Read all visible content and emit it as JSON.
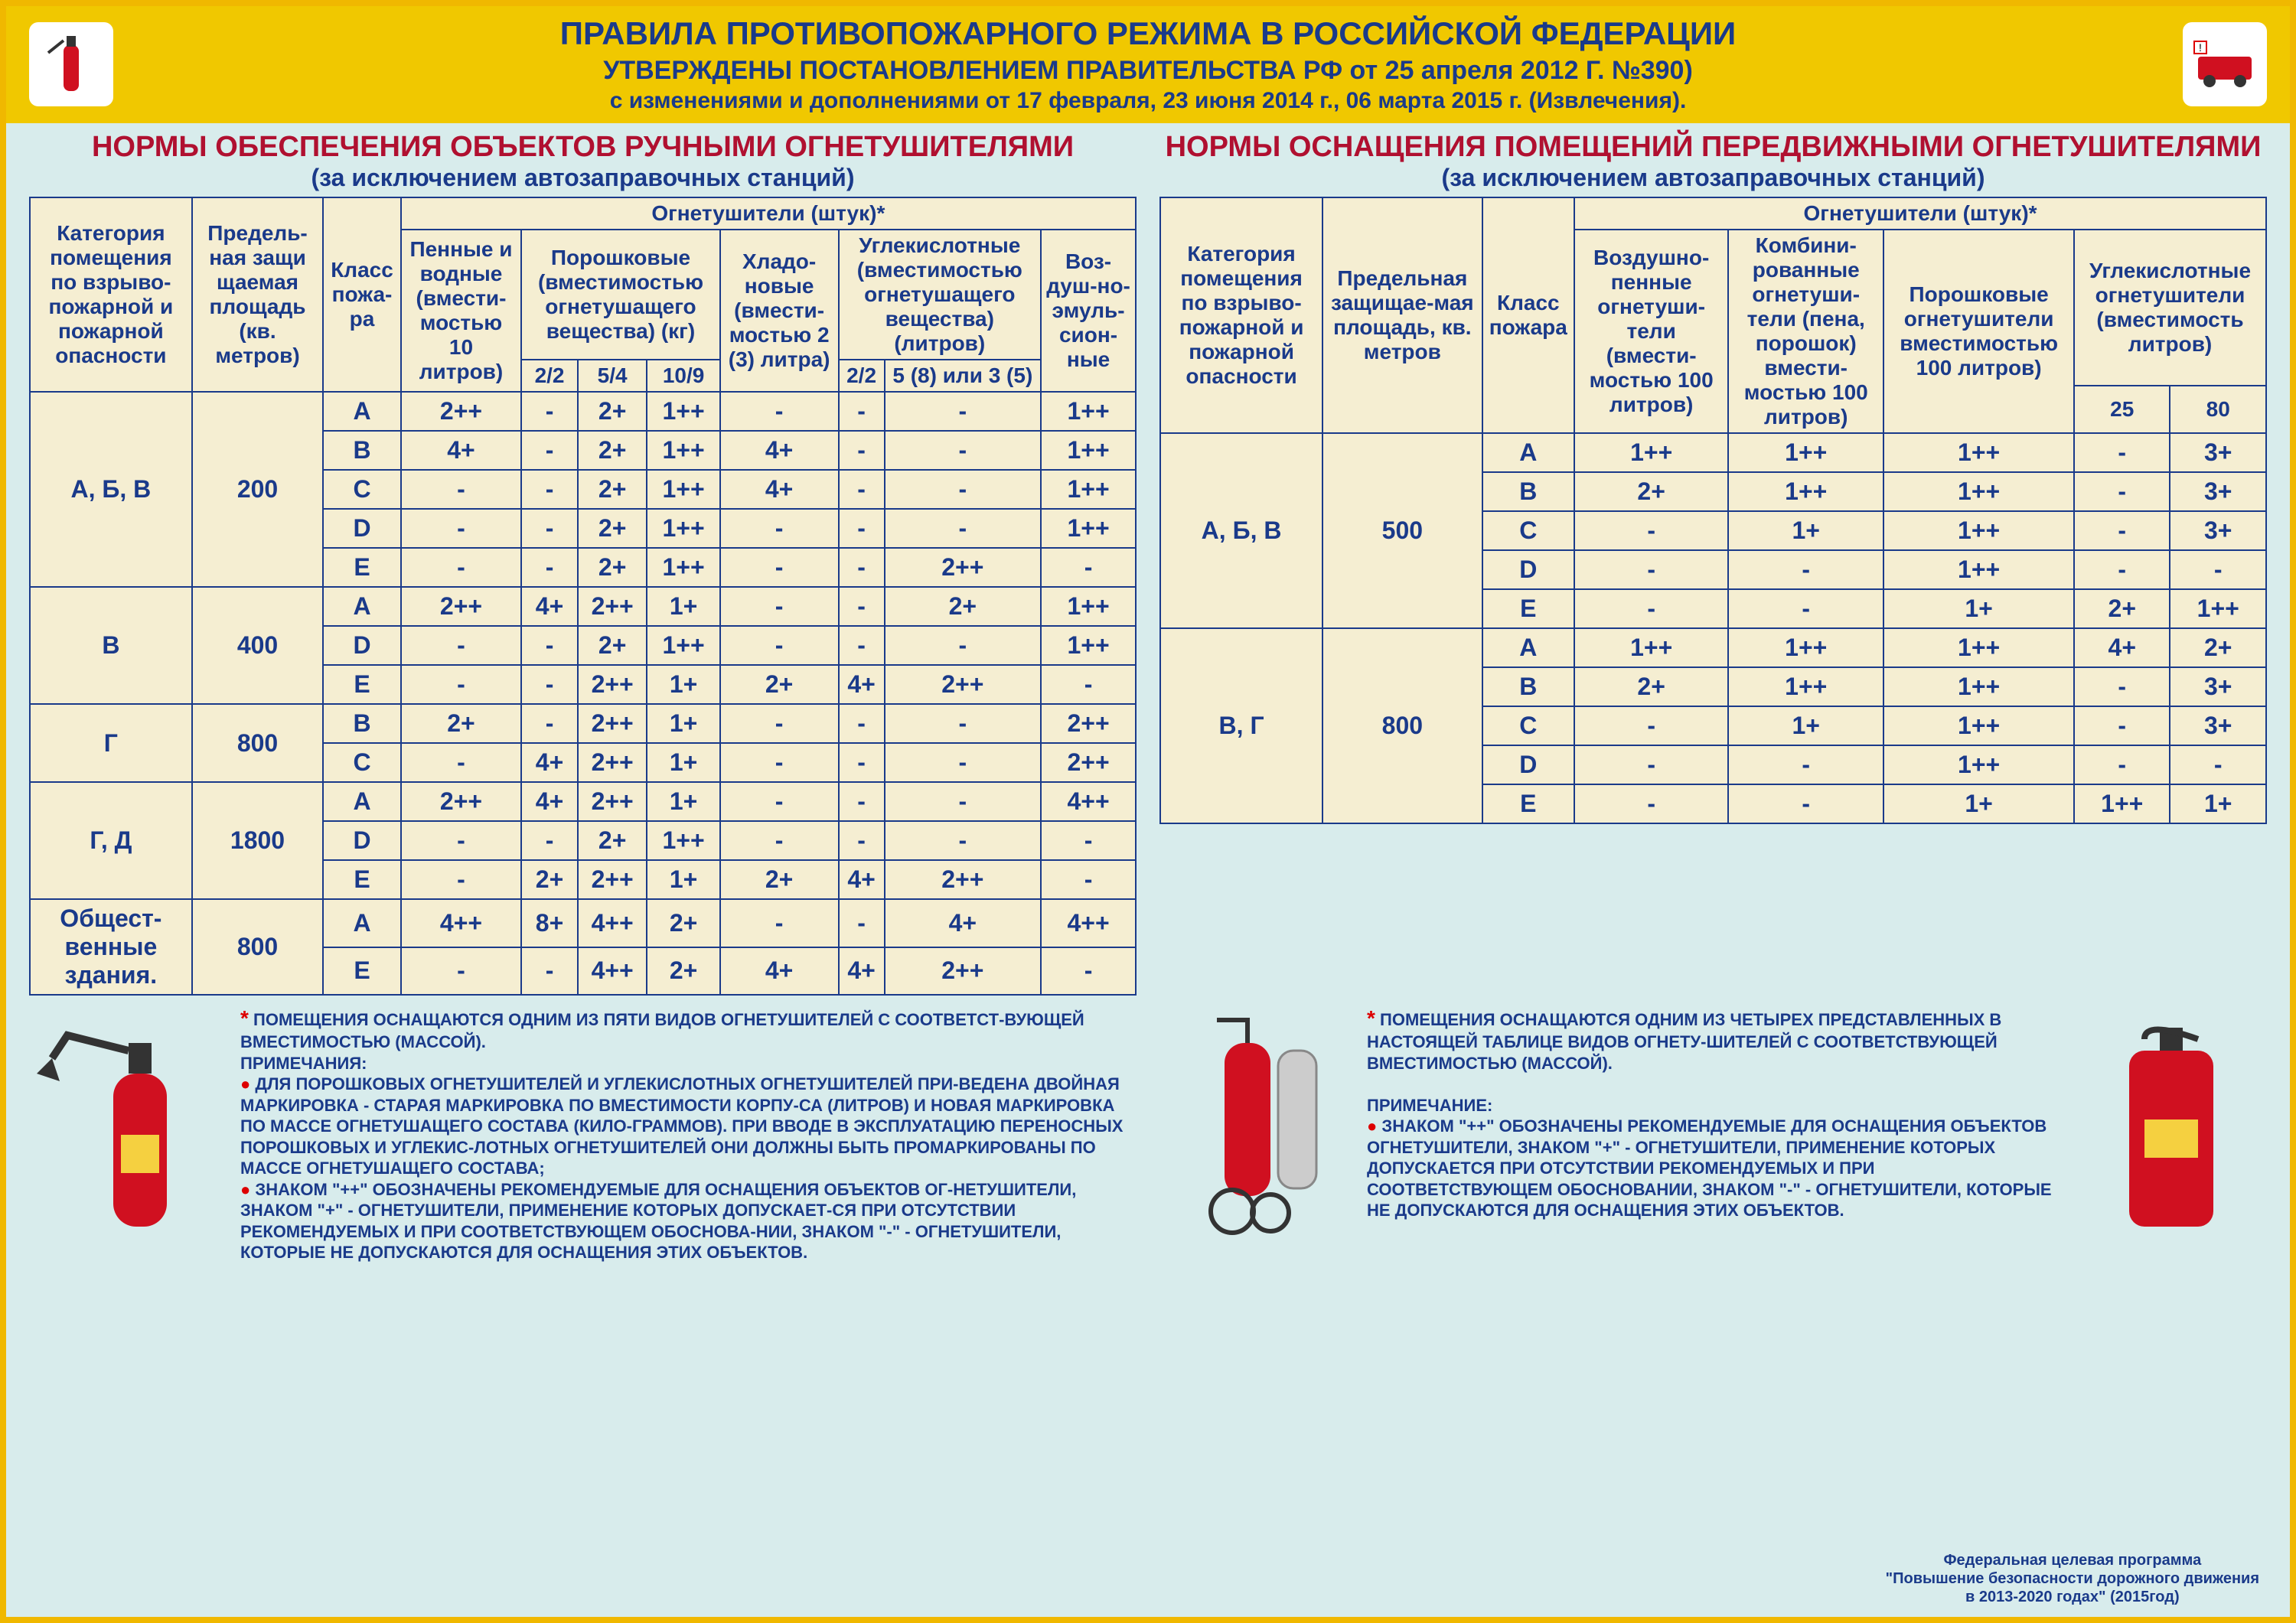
{
  "header": {
    "title": "ПРАВИЛА ПРОТИВОПОЖАРНОГО РЕЖИМА В РОССИЙСКОЙ ФЕДЕРАЦИИ",
    "sub1": "УТВЕРЖДЕНЫ ПОСТАНОВЛЕНИЕМ ПРАВИТЕЛЬСТВА РФ от 25 апреля 2012 Г. №390)",
    "sub2": "с изменениями и дополнениями от 17 февраля, 23 июня 2014 г., 06 марта 2015 г. (Извлечения)."
  },
  "left": {
    "title": "НОРМЫ ОБЕСПЕЧЕНИЯ ОБЪЕКТОВ РУЧНЫМИ ОГНЕТУШИТЕЛЯМИ",
    "sub": "(за исключением автозаправочных станций)",
    "head": {
      "c1": "Категория помещения по взрыво-пожарной и пожарной опасности",
      "c2": "Предель-ная защи щаемая площадь (кв. метров)",
      "c3": "Класс пожа-ра",
      "group": "Огнетушители (штук)*",
      "c4": "Пенные и водные (вмести-мостью 10 литров)",
      "c5g": "Порошковые (вместимостью огнетушащего вещества) (кг)",
      "c5a": "2/2",
      "c5b": "5/4",
      "c5c": "10/9",
      "c6": "Хладо-новые (вмести-мостью 2 (3) литра)",
      "c7g": "Углекислотные (вместимостью огнетушащего вещества) (литров)",
      "c7a": "2/2",
      "c7b": "5 (8) или 3 (5)",
      "c8": "Воз-душ-но-эмуль-сион-ные"
    },
    "groups": [
      {
        "cat": "А, Б, В",
        "area": "200",
        "rows": [
          [
            "А",
            "2++",
            "-",
            "2+",
            "1++",
            "-",
            "-",
            "-",
            "1++"
          ],
          [
            "В",
            "4+",
            "-",
            "2+",
            "1++",
            "4+",
            "-",
            "-",
            "1++"
          ],
          [
            "С",
            "-",
            "-",
            "2+",
            "1++",
            "4+",
            "-",
            "-",
            "1++"
          ],
          [
            "D",
            "-",
            "-",
            "2+",
            "1++",
            "-",
            "-",
            "-",
            "1++"
          ],
          [
            "Е",
            "-",
            "-",
            "2+",
            "1++",
            "-",
            "-",
            "2++",
            "-"
          ]
        ]
      },
      {
        "cat": "В",
        "area": "400",
        "rows": [
          [
            "А",
            "2++",
            "4+",
            "2++",
            "1+",
            "-",
            "-",
            "2+",
            "1++"
          ],
          [
            "D",
            "-",
            "-",
            "2+",
            "1++",
            "-",
            "-",
            "-",
            "1++"
          ],
          [
            "Е",
            "-",
            "-",
            "2++",
            "1+",
            "2+",
            "4+",
            "2++",
            "-"
          ]
        ]
      },
      {
        "cat": "Г",
        "area": "800",
        "rows": [
          [
            "В",
            "2+",
            "-",
            "2++",
            "1+",
            "-",
            "-",
            "-",
            "2++"
          ],
          [
            "С",
            "-",
            "4+",
            "2++",
            "1+",
            "-",
            "-",
            "-",
            "2++"
          ]
        ]
      },
      {
        "cat": "Г, Д",
        "area": "1800",
        "rows": [
          [
            "А",
            "2++",
            "4+",
            "2++",
            "1+",
            "-",
            "-",
            "-",
            "4++"
          ],
          [
            "D",
            "-",
            "-",
            "2+",
            "1++",
            "-",
            "-",
            "-",
            "-"
          ],
          [
            "Е",
            "-",
            "2+",
            "2++",
            "1+",
            "2+",
            "4+",
            "2++",
            "-"
          ]
        ]
      },
      {
        "cat": "Общест-венные здания.",
        "area": "800",
        "rows": [
          [
            "А",
            "4++",
            "8+",
            "4++",
            "2+",
            "-",
            "-",
            "4+",
            "4++"
          ],
          [
            "Е",
            "-",
            "-",
            "4++",
            "2+",
            "4+",
            "4+",
            "2++",
            "-"
          ]
        ]
      }
    ]
  },
  "right": {
    "title": "НОРМЫ ОСНАЩЕНИЯ ПОМЕЩЕНИЙ ПЕРЕДВИЖНЫМИ ОГНЕТУШИТЕЛЯМИ",
    "sub": "(за исключением автозаправочных станций)",
    "head": {
      "c1": "Категория помещения по взрыво-пожарной и пожарной опасности",
      "c2": "Предельная защищае-мая площадь, кв. метров",
      "c3": "Класс пожара",
      "group": "Огнетушители (штук)*",
      "c4": "Воздушно-пенные огнетуши-тели (вмести-мостью 100 литров)",
      "c5": "Комбини-рованные огнетуши-тели (пена, порошок) вмести-мостью 100 литров)",
      "c6": "Порошковые огнетушители вместимостью 100 литров)",
      "c7g": "Углекислотные огнетушители (вместимость литров)",
      "c7a": "25",
      "c7b": "80"
    },
    "groups": [
      {
        "cat": "А, Б, В",
        "area": "500",
        "rows": [
          [
            "А",
            "1++",
            "1++",
            "1++",
            "-",
            "3+"
          ],
          [
            "В",
            "2+",
            "1++",
            "1++",
            "-",
            "3+"
          ],
          [
            "С",
            "-",
            "1+",
            "1++",
            "-",
            "3+"
          ],
          [
            "D",
            "-",
            "-",
            "1++",
            "-",
            "-"
          ],
          [
            "Е",
            "-",
            "-",
            "1+",
            "2+",
            "1++"
          ]
        ]
      },
      {
        "cat": "В, Г",
        "area": "800",
        "rows": [
          [
            "А",
            "1++",
            "1++",
            "1++",
            "4+",
            "2+"
          ],
          [
            "В",
            "2+",
            "1++",
            "1++",
            "-",
            "3+"
          ],
          [
            "С",
            "-",
            "1+",
            "1++",
            "-",
            "3+"
          ],
          [
            "D",
            "-",
            "-",
            "1++",
            "-",
            "-"
          ],
          [
            "Е",
            "-",
            "-",
            "1+",
            "1++",
            "1+"
          ]
        ]
      }
    ]
  },
  "notes": {
    "left": {
      "ast": "ПОМЕЩЕНИЯ ОСНАЩАЮТСЯ ОДНИМ ИЗ ПЯТИ ВИДОВ ОГНЕТУШИТЕЛЕЙ С СООТВЕТСТ-ВУЮЩЕЙ ВМЕСТИМОСТЬЮ (МАССОЙ).",
      "hdr": "ПРИМЕЧАНИЯ:",
      "p1": "ДЛЯ ПОРОШКОВЫХ ОГНЕТУШИТЕЛЕЙ И УГЛЕКИСЛОТНЫХ ОГНЕТУШИТЕЛЕЙ ПРИ-ВЕДЕНА ДВОЙНАЯ МАРКИРОВКА - СТАРАЯ МАРКИРОВКА ПО ВМЕСТИМОСТИ КОРПУ-СА (ЛИТРОВ) И НОВАЯ МАРКИРОВКА ПО МАССЕ ОГНЕТУШАЩЕГО СОСТАВА (КИЛО-ГРАММОВ). ПРИ ВВОДЕ В ЭКСПЛУАТАЦИЮ ПЕРЕНОСНЫХ ПОРОШКОВЫХ И УГЛЕКИС-ЛОТНЫХ ОГНЕТУШИТЕЛЕЙ ОНИ ДОЛЖНЫ БЫТЬ ПРОМАРКИРОВАНЫ ПО МАССЕ ОГНЕТУШАЩЕГО СОСТАВА;",
      "p2": "ЗНАКОМ \"++\" ОБОЗНАЧЕНЫ РЕКОМЕНДУЕМЫЕ ДЛЯ ОСНАЩЕНИЯ ОБЪЕКТОВ ОГ-НЕТУШИТЕЛИ, ЗНАКОМ \"+\" - ОГНЕТУШИТЕЛИ, ПРИМЕНЕНИЕ КОТОРЫХ ДОПУСКАЕТ-СЯ ПРИ ОТСУТСТВИИ РЕКОМЕНДУЕМЫХ И ПРИ СООТВЕТСТВУЮЩЕМ ОБОСНОВА-НИИ, ЗНАКОМ \"-\" - ОГНЕТУШИТЕЛИ, КОТОРЫЕ НЕ ДОПУСКАЮТСЯ ДЛЯ ОСНАЩЕНИЯ ЭТИХ ОБЪЕКТОВ."
    },
    "right": {
      "ast": "ПОМЕЩЕНИЯ ОСНАЩАЮТСЯ ОДНИМ ИЗ ЧЕТЫРЕХ ПРЕДСТАВЛЕННЫХ В НАСТОЯЩЕЙ ТАБЛИЦЕ ВИДОВ ОГНЕТУ-ШИТЕЛЕЙ С СООТВЕТСТВУЮЩЕЙ ВМЕСТИМОСТЬЮ (МАССОЙ).",
      "hdr": "ПРИМЕЧАНИЕ:",
      "p1": "ЗНАКОМ \"++\" ОБОЗНАЧЕНЫ РЕКОМЕНДУЕМЫЕ ДЛЯ ОСНАЩЕНИЯ ОБЪЕКТОВ ОГНЕТУШИТЕЛИ, ЗНАКОМ \"+\" - ОГНЕТУШИТЕЛИ, ПРИМЕНЕНИЕ КОТОРЫХ ДОПУСКАЕТСЯ ПРИ ОТСУТСТВИИ РЕКОМЕНДУЕМЫХ И ПРИ СООТВЕТСТВУЮЩЕМ ОБОСНОВАНИИ, ЗНАКОМ \"-\" - ОГНЕТУШИТЕЛИ, КОТОРЫЕ НЕ ДОПУСКАЮТСЯ ДЛЯ ОСНАЩЕНИЯ ЭТИХ ОБЪЕКТОВ."
    }
  },
  "footer": {
    "l1": "Федеральная целевая программа",
    "l2": "\"Повышение безопасности дорожного движения",
    "l3": "в 2013-2020 годах\" (2015год)"
  },
  "colors": {
    "accent": "#1a3a8a",
    "table_bg": "#f5eed2",
    "page_bg": "#d8ecec",
    "band": "#f0c800",
    "title_red": "#b01030"
  }
}
